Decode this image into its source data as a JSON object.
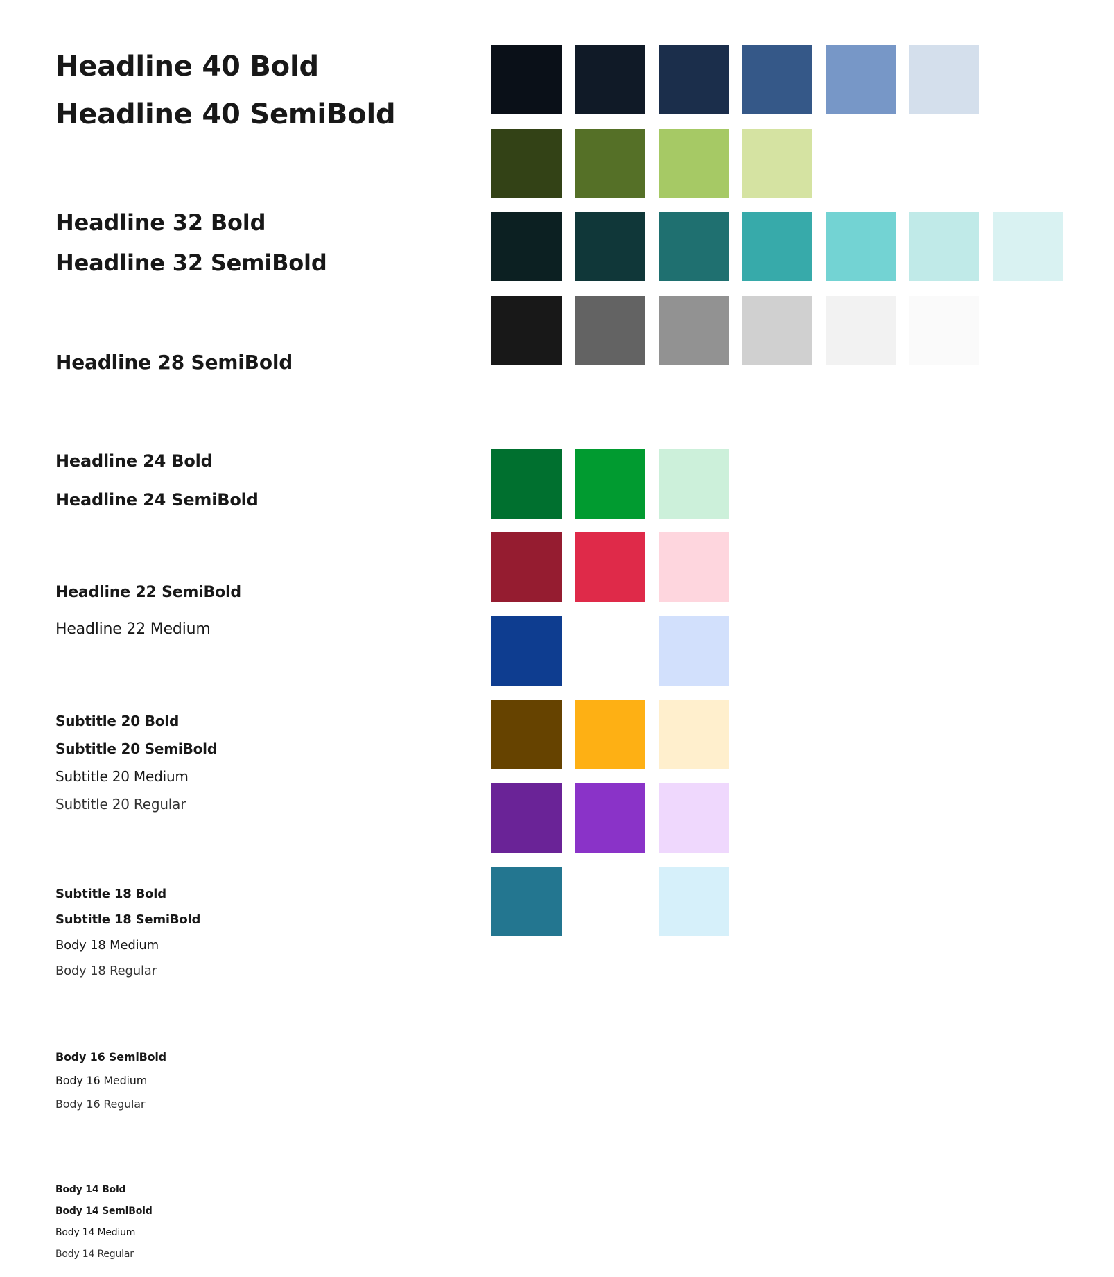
{
  "typography": {
    "h40_bold": "Headline 40 Bold",
    "h40_semibold": "Headline 40 SemiBold",
    "h32_bold": "Headline 32 Bold",
    "h32_semibold": "Headline 32 SemiBold",
    "h28_semibold": "Headline 28 SemiBold",
    "h24_bold": "Headline 24 Bold",
    "h24_semibold": "Headline 24 SemiBold",
    "h22_semibold": "Headline 22 SemiBold",
    "h22_medium": "Headline 22 Medium",
    "s20_bold": "Subtitle 20 Bold",
    "s20_semibold": "Subtitle 20 SemiBold",
    "s20_medium": "Subtitle 20 Medium",
    "s20_regular": "Subtitle 20 Regular",
    "s18_bold": "Subtitle 18 Bold",
    "s18_semibold": "Subtitle 18 SemiBold",
    "b18_medium": "Body 18 Medium",
    "b18_regular": "Body 18 Regular",
    "b16_semibold": "Body 16 SemiBold",
    "b16_medium": "Body 16 Medium",
    "b16_regular": "Body 16 Regular",
    "b14_bold": "Body 14 Bold",
    "b14_semibold": "Body 14 SemiBold",
    "b14_medium": "Body 14 Medium",
    "b14_regular": "Body 14 Regular"
  },
  "palette": {
    "navy": [
      "#0a1018",
      "#101a27",
      "#1b2e4b",
      "#355888",
      "#7797c7",
      "#d4dfec"
    ],
    "olive": [
      "#334216",
      "#557027",
      "#a6c965",
      "#d5e3a2"
    ],
    "teal": [
      "#0c2022",
      "#103739",
      "#1f7070",
      "#37aaaa",
      "#73d3d3",
      "#c0eae8",
      "#d9f2f2"
    ],
    "gray": [
      "#181818",
      "#636363",
      "#929292",
      "#d0d0d0",
      "#f2f2f2",
      "#fafafa"
    ],
    "success": [
      "#00702f",
      "#019b30",
      "#ccf0da"
    ],
    "danger": [
      "#951c30",
      "#df2a49",
      "#fed6de"
    ],
    "info": [
      "#0e3d90",
      "#d2e0fc"
    ],
    "warning": [
      "#664300",
      "#feb014",
      "#ffefcd"
    ],
    "purple": [
      "#6a2397",
      "#8a33c8",
      "#efd8fd"
    ],
    "cyan": [
      "#237690",
      "#d6f0fa"
    ]
  }
}
